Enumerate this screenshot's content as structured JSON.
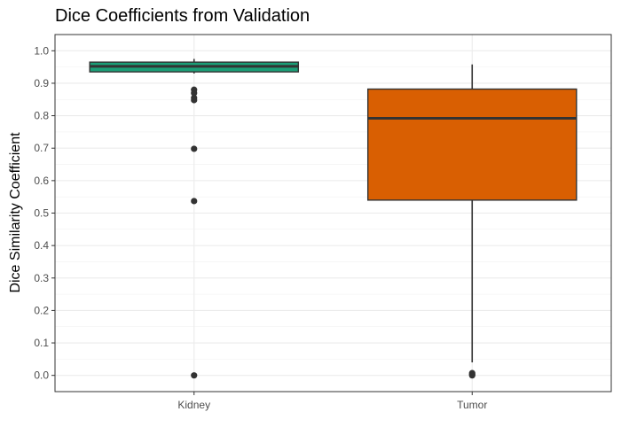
{
  "chart_data": {
    "type": "boxplot",
    "title": "Dice Coefficients from Validation",
    "xlabel": "",
    "ylabel": "Dice Similarity Coefficient",
    "ylim": [
      -0.05,
      1.05
    ],
    "y_ticks": [
      0.0,
      0.1,
      0.2,
      0.3,
      0.4,
      0.5,
      0.6,
      0.7,
      0.8,
      0.9,
      1.0
    ],
    "y_tick_labels": [
      "0.0",
      "0.1",
      "0.2",
      "0.3",
      "0.4",
      "0.5",
      "0.6",
      "0.7",
      "0.8",
      "0.9",
      "1.0"
    ],
    "grid": true,
    "legend": "none",
    "categories": [
      "Kidney",
      "Tumor"
    ],
    "boxes": [
      {
        "category": "Kidney",
        "color": "#1b9e77",
        "whisker_low": 0.93,
        "q1": 0.935,
        "median": 0.952,
        "q3": 0.965,
        "whisker_high": 0.975,
        "outliers": [
          0.88,
          0.87,
          0.855,
          0.848,
          0.698,
          0.537,
          0.0
        ]
      },
      {
        "category": "Tumor",
        "color": "#d95f02",
        "whisker_low": 0.04,
        "q1": 0.54,
        "median": 0.792,
        "q3": 0.882,
        "whisker_high": 0.958,
        "outliers": [
          0.007,
          0.003,
          0.0
        ]
      }
    ]
  }
}
